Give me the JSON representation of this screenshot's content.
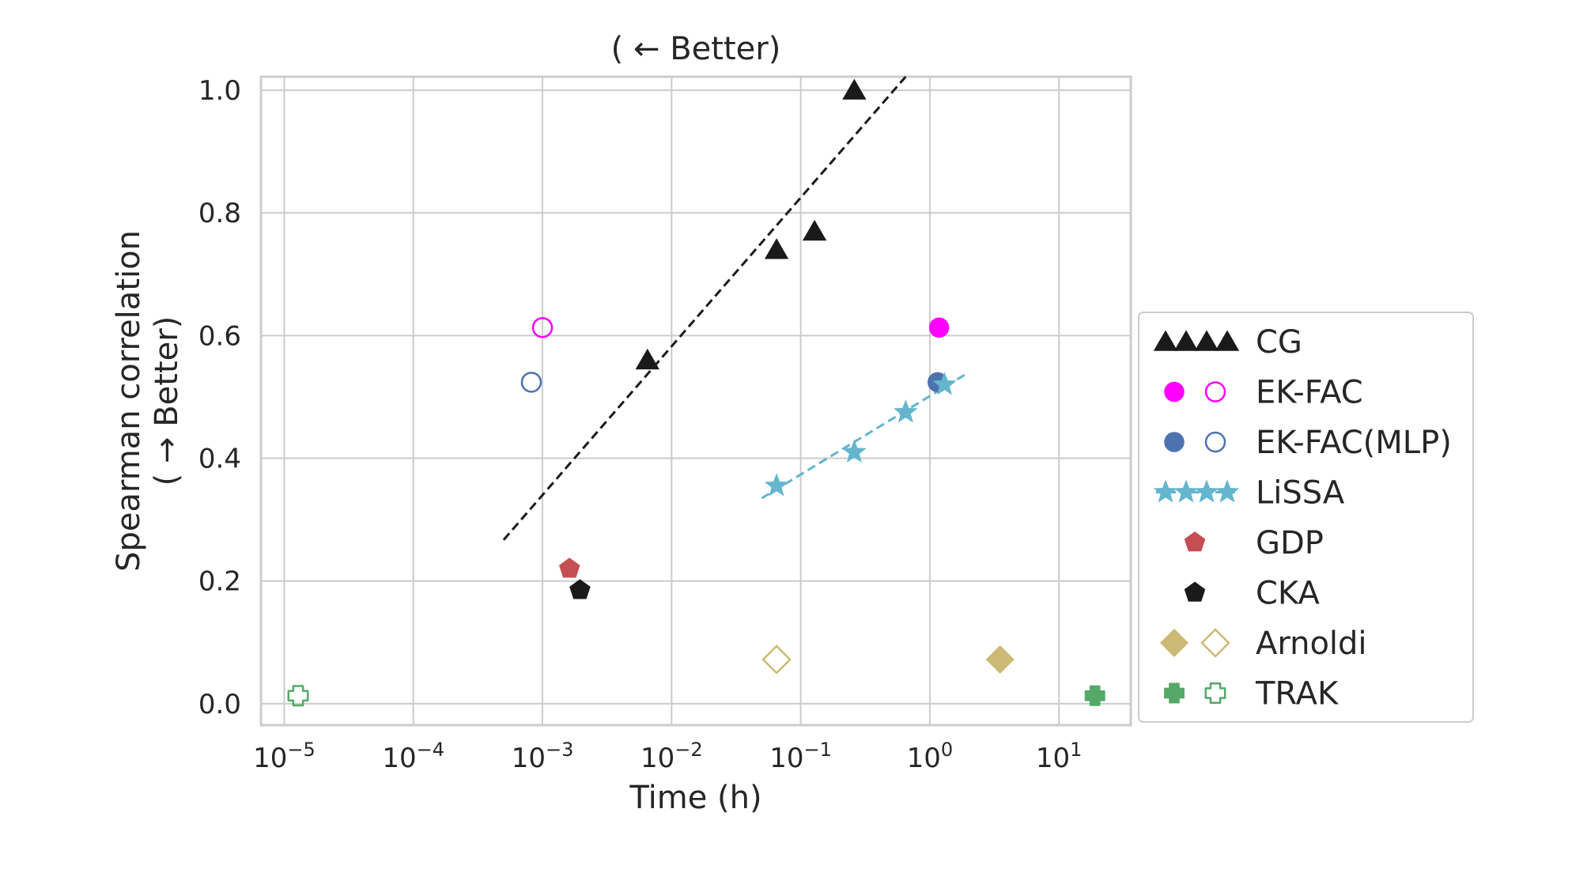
{
  "chart_data": {
    "type": "scatter",
    "title": "( ← Better)",
    "xlabel": "Time (h)",
    "ylabel_lines": [
      "Spearman correlation",
      "( → Better)"
    ],
    "xscale": "log",
    "xlim": [
      6.6e-06,
      36
    ],
    "ylim": [
      -0.035,
      1.022
    ],
    "xticks": [
      {
        "value": 1e-05,
        "base": "10",
        "exp": "−5"
      },
      {
        "value": 0.0001,
        "base": "10",
        "exp": "−4"
      },
      {
        "value": 0.001,
        "base": "10",
        "exp": "−3"
      },
      {
        "value": 0.01,
        "base": "10",
        "exp": "−2"
      },
      {
        "value": 0.1,
        "base": "10",
        "exp": "−1"
      },
      {
        "value": 1,
        "base": "10",
        "exp": "0"
      },
      {
        "value": 10,
        "base": "10",
        "exp": "1"
      }
    ],
    "yticks": [
      {
        "value": 0.0,
        "label": "0.0"
      },
      {
        "value": 0.2,
        "label": "0.2"
      },
      {
        "value": 0.4,
        "label": "0.4"
      },
      {
        "value": 0.6,
        "label": "0.6"
      },
      {
        "value": 0.8,
        "label": "0.8"
      },
      {
        "value": 1.0,
        "label": "1.0"
      }
    ],
    "grid": true,
    "legend_position": "center-right outside",
    "series": [
      {
        "name": "CG",
        "marker": "triangle",
        "color": "#1a1a1a",
        "filled": true,
        "points": [
          {
            "x": 0.0065,
            "y": 0.56
          },
          {
            "x": 0.065,
            "y": 0.74
          },
          {
            "x": 0.128,
            "y": 0.77
          },
          {
            "x": 0.26,
            "y": 1.0
          }
        ]
      },
      {
        "name": "EK-FAC",
        "marker": "circle",
        "color": "#ff00ff",
        "filled": true,
        "legend_hollow": true,
        "points": [
          {
            "x": 1.18,
            "y": 0.613
          },
          {
            "x": 0.001,
            "y": 0.613,
            "hollow": true
          }
        ]
      },
      {
        "name": "EK-FAC(MLP)",
        "marker": "circle",
        "color": "#4c72b0",
        "filled": true,
        "legend_hollow": true,
        "points": [
          {
            "x": 1.15,
            "y": 0.524
          },
          {
            "x": 0.00082,
            "y": 0.524,
            "hollow": true
          }
        ]
      },
      {
        "name": "LiSSA",
        "marker": "star",
        "color": "#64b5cd",
        "filled": true,
        "points": [
          {
            "x": 0.065,
            "y": 0.355
          },
          {
            "x": 0.26,
            "y": 0.41
          },
          {
            "x": 0.65,
            "y": 0.475
          },
          {
            "x": 1.3,
            "y": 0.52
          }
        ]
      },
      {
        "name": "GDP",
        "marker": "pentagon",
        "color": "#c44e52",
        "filled": true,
        "points": [
          {
            "x": 0.00162,
            "y": 0.22
          }
        ]
      },
      {
        "name": "CKA",
        "marker": "pentagon",
        "color": "#1a1a1a",
        "filled": true,
        "points": [
          {
            "x": 0.00195,
            "y": 0.185
          }
        ]
      },
      {
        "name": "Arnoldi",
        "marker": "diamond",
        "color": "#ccb974",
        "filled": true,
        "legend_hollow": true,
        "points": [
          {
            "x": 3.5,
            "y": 0.072
          },
          {
            "x": 0.065,
            "y": 0.072,
            "hollow": true
          }
        ]
      },
      {
        "name": "TRAK",
        "marker": "x",
        "color": "#55a868",
        "filled": true,
        "legend_hollow": true,
        "points": [
          {
            "x": 19,
            "y": 0.013
          },
          {
            "x": 1.28e-05,
            "y": 0.013,
            "hollow": true
          }
        ]
      }
    ],
    "trend_lines": [
      {
        "color": "#1a1a1a",
        "style": "dashed",
        "from": {
          "x": 0.0005,
          "y": 0.267
        },
        "to": {
          "x": 0.65,
          "y": 1.022
        }
      },
      {
        "color": "#64b5cd",
        "style": "dashed",
        "from": {
          "x": 0.05,
          "y": 0.335
        },
        "to": {
          "x": 2.0,
          "y": 0.54
        }
      }
    ]
  }
}
